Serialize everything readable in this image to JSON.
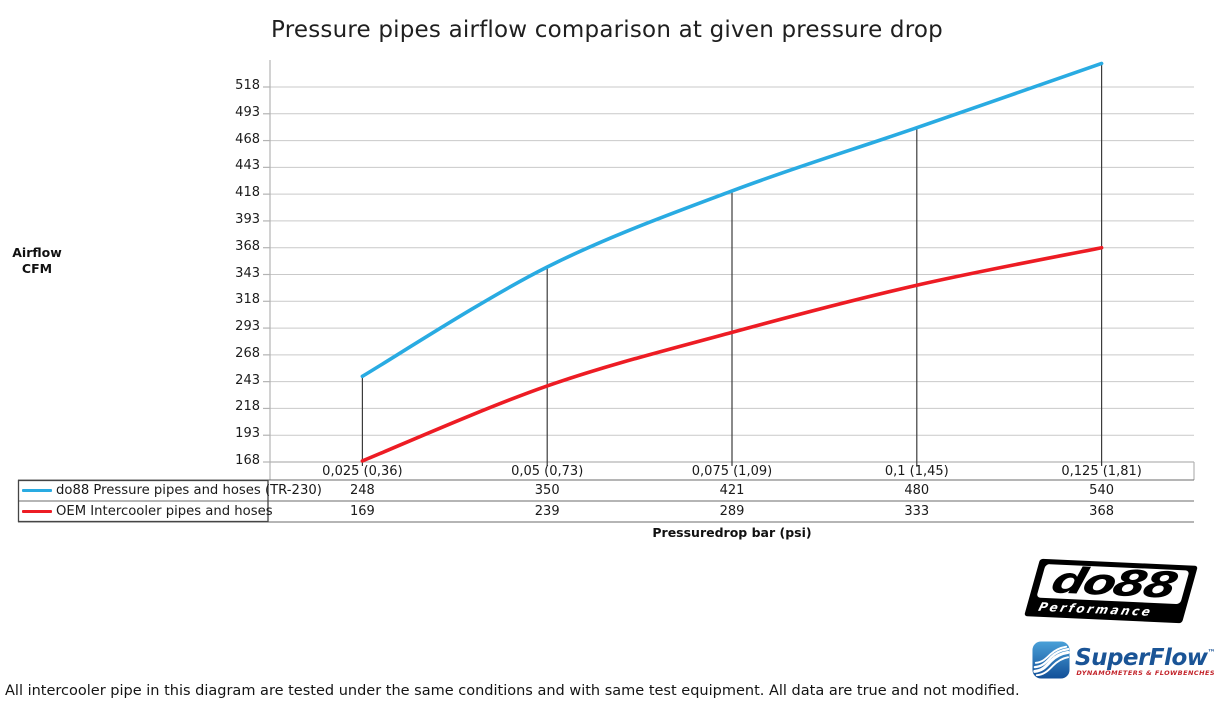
{
  "title": "Pressure pipes airflow comparison at given pressure drop",
  "y_axis": {
    "title_line1": "Airflow",
    "title_line2": "CFM"
  },
  "x_axis": {
    "title": "Pressuredrop bar (psi)"
  },
  "chart_data": {
    "type": "line",
    "title": "Pressure pipes airflow comparison at given pressure drop",
    "xlabel": "Pressuredrop bar (psi)",
    "ylabel": "Airflow CFM",
    "categories": [
      "0,025 (0,36)",
      "0,05 (0,73)",
      "0,075 (1,09)",
      "0,1 (1,45)",
      "0,125 (1,81)"
    ],
    "series": [
      {
        "name": "do88 Pressure pipes and hoses (TR-230)",
        "color": "#29abe2",
        "values": [
          248,
          350,
          421,
          480,
          540
        ]
      },
      {
        "name": "OEM Intercooler pipes and hoses",
        "color": "#ed1c24",
        "values": [
          169,
          239,
          289,
          333,
          368
        ]
      }
    ],
    "y_ticks": [
      518,
      493,
      468,
      443,
      418,
      393,
      368,
      343,
      318,
      293,
      268,
      243,
      218,
      193,
      168
    ],
    "ylim": [
      168,
      543
    ],
    "grid": "horizontal",
    "legend_position": "table-left",
    "drop_lines": "vertical line from each do88 data point to x-axis",
    "colors": {
      "grid": "#c9c9c9",
      "axis": "#b3b3b3",
      "drop_line": "#3c3c3c",
      "table_line": "#6b6b6b"
    }
  },
  "footnote": "All intercooler pipe in this diagram are tested under the same conditions and with same test equipment. All data are true and not modified.",
  "logos": {
    "do88": {
      "word": "do88",
      "sub": "Performance"
    },
    "superflow": {
      "name": "SuperFlow",
      "tm": "™",
      "tagline": "DYNAMOMETERS & FLOWBENCHES"
    }
  }
}
